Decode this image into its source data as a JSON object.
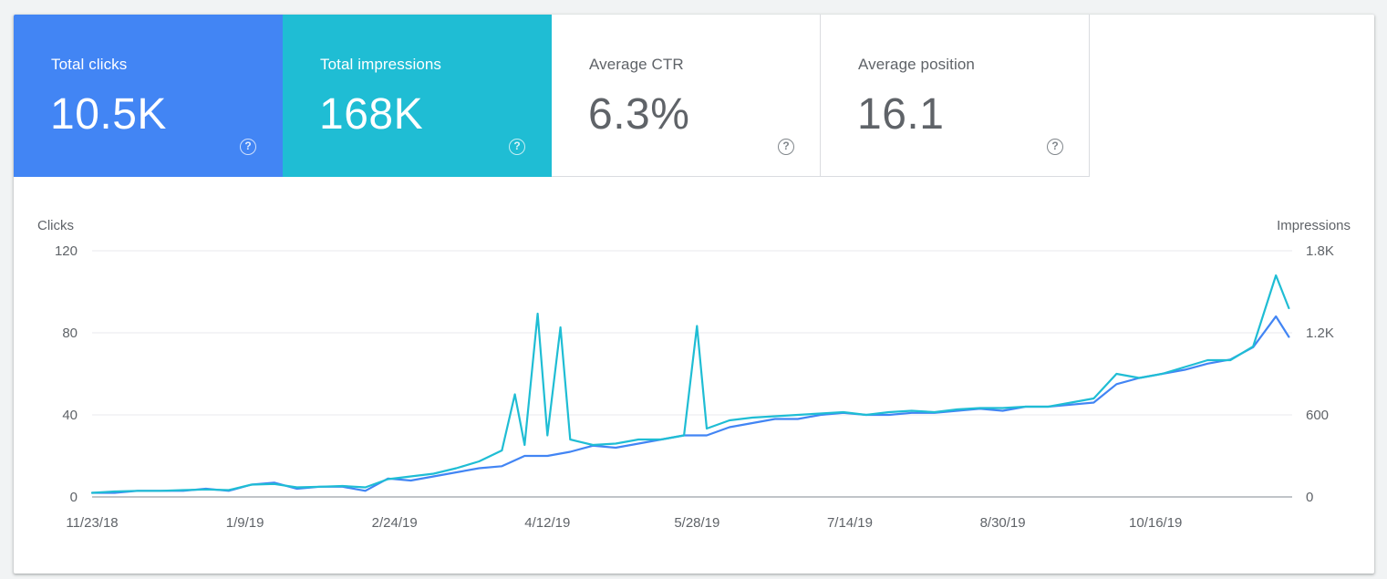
{
  "metrics": [
    {
      "label": "Total clicks",
      "value": "10.5K",
      "state": "selected",
      "color": "#4285f4"
    },
    {
      "label": "Total impressions",
      "value": "168K",
      "state": "selected",
      "color": "#1fbdd4"
    },
    {
      "label": "Average CTR",
      "value": "6.3%",
      "state": "unselected"
    },
    {
      "label": "Average position",
      "value": "16.1",
      "state": "unselected"
    }
  ],
  "help_glyph": "?",
  "chart_data": {
    "type": "line",
    "ylabel_left": "Clicks",
    "ylabel_right": "Impressions",
    "y_left_ticks": [
      "0",
      "40",
      "80",
      "120"
    ],
    "y_right_ticks": [
      "0",
      "600",
      "1.2K",
      "1.8K"
    ],
    "ylim_left": [
      0,
      120
    ],
    "ylim_right": [
      0,
      1800
    ],
    "x_tick_labels": [
      "11/23/18",
      "1/9/19",
      "2/24/19",
      "4/12/19",
      "5/28/19",
      "7/14/19",
      "8/30/19",
      "10/16/19"
    ],
    "grid": true,
    "series": [
      {
        "name": "Clicks",
        "axis": "left",
        "color": "#4285f4",
        "points": [
          [
            "2018-11-23",
            2
          ],
          [
            "2018-11-30",
            2
          ],
          [
            "2018-12-07",
            3
          ],
          [
            "2018-12-14",
            3
          ],
          [
            "2018-12-21",
            3
          ],
          [
            "2018-12-28",
            4
          ],
          [
            "2019-01-04",
            3
          ],
          [
            "2019-01-11",
            6
          ],
          [
            "2019-01-18",
            7
          ],
          [
            "2019-01-25",
            4
          ],
          [
            "2019-02-01",
            5
          ],
          [
            "2019-02-08",
            5
          ],
          [
            "2019-02-15",
            3
          ],
          [
            "2019-02-22",
            9
          ],
          [
            "2019-03-01",
            8
          ],
          [
            "2019-03-08",
            10
          ],
          [
            "2019-03-15",
            12
          ],
          [
            "2019-03-22",
            14
          ],
          [
            "2019-03-29",
            15
          ],
          [
            "2019-04-05",
            20
          ],
          [
            "2019-04-12",
            20
          ],
          [
            "2019-04-19",
            22
          ],
          [
            "2019-04-26",
            25
          ],
          [
            "2019-05-03",
            24
          ],
          [
            "2019-05-10",
            26
          ],
          [
            "2019-05-17",
            28
          ],
          [
            "2019-05-24",
            30
          ],
          [
            "2019-05-31",
            30
          ],
          [
            "2019-06-07",
            34
          ],
          [
            "2019-06-14",
            36
          ],
          [
            "2019-06-21",
            38
          ],
          [
            "2019-06-28",
            38
          ],
          [
            "2019-07-05",
            40
          ],
          [
            "2019-07-12",
            41
          ],
          [
            "2019-07-19",
            40
          ],
          [
            "2019-07-26",
            40
          ],
          [
            "2019-08-02",
            41
          ],
          [
            "2019-08-09",
            41
          ],
          [
            "2019-08-16",
            42
          ],
          [
            "2019-08-23",
            43
          ],
          [
            "2019-08-30",
            42
          ],
          [
            "2019-09-06",
            44
          ],
          [
            "2019-09-13",
            44
          ],
          [
            "2019-09-20",
            45
          ],
          [
            "2019-09-27",
            46
          ],
          [
            "2019-10-04",
            55
          ],
          [
            "2019-10-11",
            58
          ],
          [
            "2019-10-18",
            60
          ],
          [
            "2019-10-25",
            62
          ],
          [
            "2019-11-01",
            65
          ],
          [
            "2019-11-08",
            67
          ],
          [
            "2019-11-15",
            73
          ],
          [
            "2019-11-22",
            88
          ],
          [
            "2019-11-26",
            78
          ]
        ]
      },
      {
        "name": "Impressions",
        "axis": "right",
        "color": "#1fbdd4",
        "points": [
          [
            "2018-11-23",
            30
          ],
          [
            "2018-11-30",
            40
          ],
          [
            "2018-12-07",
            45
          ],
          [
            "2018-12-14",
            45
          ],
          [
            "2018-12-21",
            50
          ],
          [
            "2018-12-28",
            55
          ],
          [
            "2019-01-04",
            50
          ],
          [
            "2019-01-11",
            90
          ],
          [
            "2019-01-18",
            95
          ],
          [
            "2019-01-25",
            70
          ],
          [
            "2019-02-01",
            75
          ],
          [
            "2019-02-08",
            80
          ],
          [
            "2019-02-15",
            70
          ],
          [
            "2019-02-22",
            130
          ],
          [
            "2019-03-01",
            150
          ],
          [
            "2019-03-08",
            170
          ],
          [
            "2019-03-15",
            210
          ],
          [
            "2019-03-22",
            260
          ],
          [
            "2019-03-29",
            340
          ],
          [
            "2019-04-02",
            750
          ],
          [
            "2019-04-05",
            380
          ],
          [
            "2019-04-09",
            1340
          ],
          [
            "2019-04-12",
            450
          ],
          [
            "2019-04-16",
            1240
          ],
          [
            "2019-04-19",
            420
          ],
          [
            "2019-04-26",
            380
          ],
          [
            "2019-05-03",
            390
          ],
          [
            "2019-05-10",
            420
          ],
          [
            "2019-05-17",
            420
          ],
          [
            "2019-05-24",
            450
          ],
          [
            "2019-05-28",
            1250
          ],
          [
            "2019-05-31",
            500
          ],
          [
            "2019-06-07",
            560
          ],
          [
            "2019-06-14",
            580
          ],
          [
            "2019-06-21",
            590
          ],
          [
            "2019-06-28",
            600
          ],
          [
            "2019-07-05",
            610
          ],
          [
            "2019-07-12",
            620
          ],
          [
            "2019-07-19",
            600
          ],
          [
            "2019-07-26",
            620
          ],
          [
            "2019-08-02",
            630
          ],
          [
            "2019-08-09",
            620
          ],
          [
            "2019-08-16",
            640
          ],
          [
            "2019-08-23",
            650
          ],
          [
            "2019-08-30",
            650
          ],
          [
            "2019-09-06",
            660
          ],
          [
            "2019-09-13",
            660
          ],
          [
            "2019-09-20",
            690
          ],
          [
            "2019-09-27",
            720
          ],
          [
            "2019-10-04",
            900
          ],
          [
            "2019-10-11",
            870
          ],
          [
            "2019-10-18",
            900
          ],
          [
            "2019-10-25",
            950
          ],
          [
            "2019-11-01",
            1000
          ],
          [
            "2019-11-08",
            1000
          ],
          [
            "2019-11-15",
            1100
          ],
          [
            "2019-11-22",
            1620
          ],
          [
            "2019-11-26",
            1380
          ]
        ]
      }
    ]
  }
}
